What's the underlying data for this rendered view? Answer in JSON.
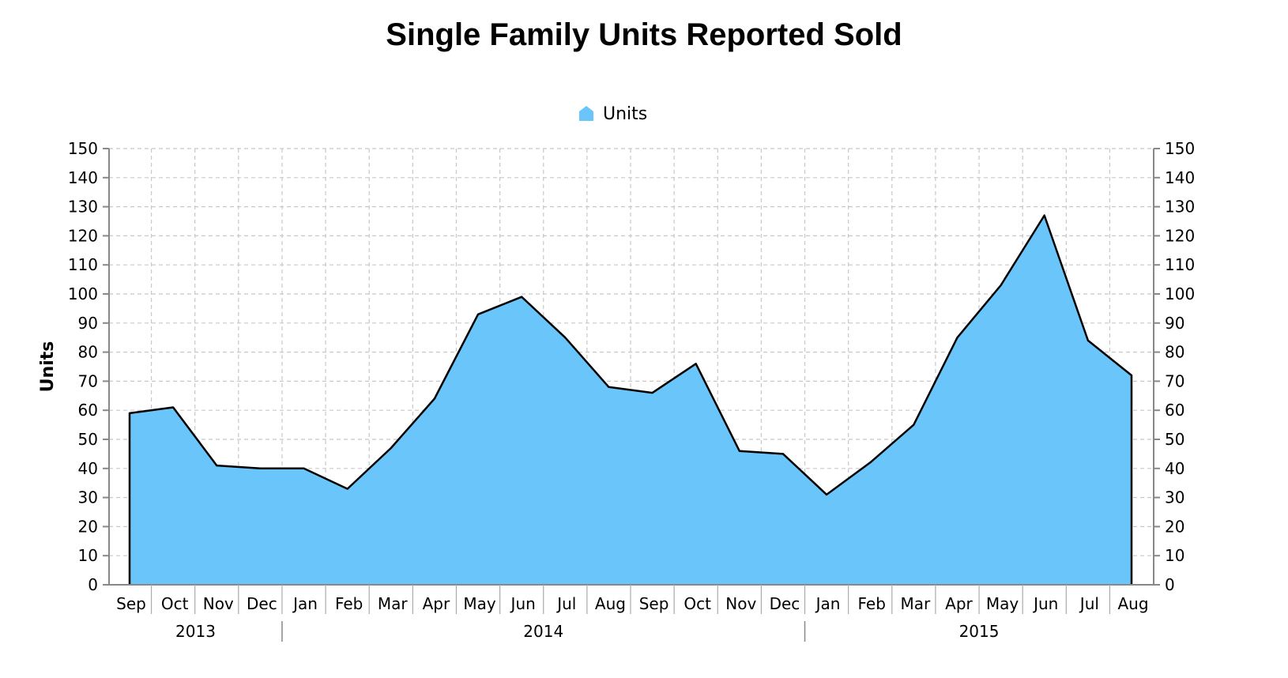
{
  "chart_data": {
    "type": "area",
    "title": "Single Family Units Reported Sold",
    "ylabel": "Units",
    "xlabel": "",
    "ylim": [
      0,
      150
    ],
    "y_ticks": [
      0,
      10,
      20,
      30,
      40,
      50,
      60,
      70,
      80,
      90,
      100,
      110,
      120,
      130,
      140,
      150
    ],
    "grid": true,
    "legend_position": "top-center",
    "categories": [
      "Sep",
      "Oct",
      "Nov",
      "Dec",
      "Jan",
      "Feb",
      "Mar",
      "Apr",
      "May",
      "Jun",
      "Jul",
      "Aug",
      "Sep",
      "Oct",
      "Nov",
      "Dec",
      "Jan",
      "Feb",
      "Mar",
      "Apr",
      "May",
      "Jun",
      "Jul",
      "Aug"
    ],
    "year_groups": [
      {
        "label": "2013",
        "start": 0,
        "count": 4
      },
      {
        "label": "2014",
        "start": 4,
        "count": 12
      },
      {
        "label": "2015",
        "start": 16,
        "count": 8
      }
    ],
    "series": [
      {
        "name": "Units",
        "color": "#6ac5fb",
        "values": [
          59,
          61,
          41,
          40,
          40,
          33,
          47,
          64,
          93,
          99,
          85,
          68,
          66,
          76,
          46,
          45,
          31,
          42,
          55,
          85,
          103,
          127,
          84,
          72
        ]
      }
    ]
  }
}
